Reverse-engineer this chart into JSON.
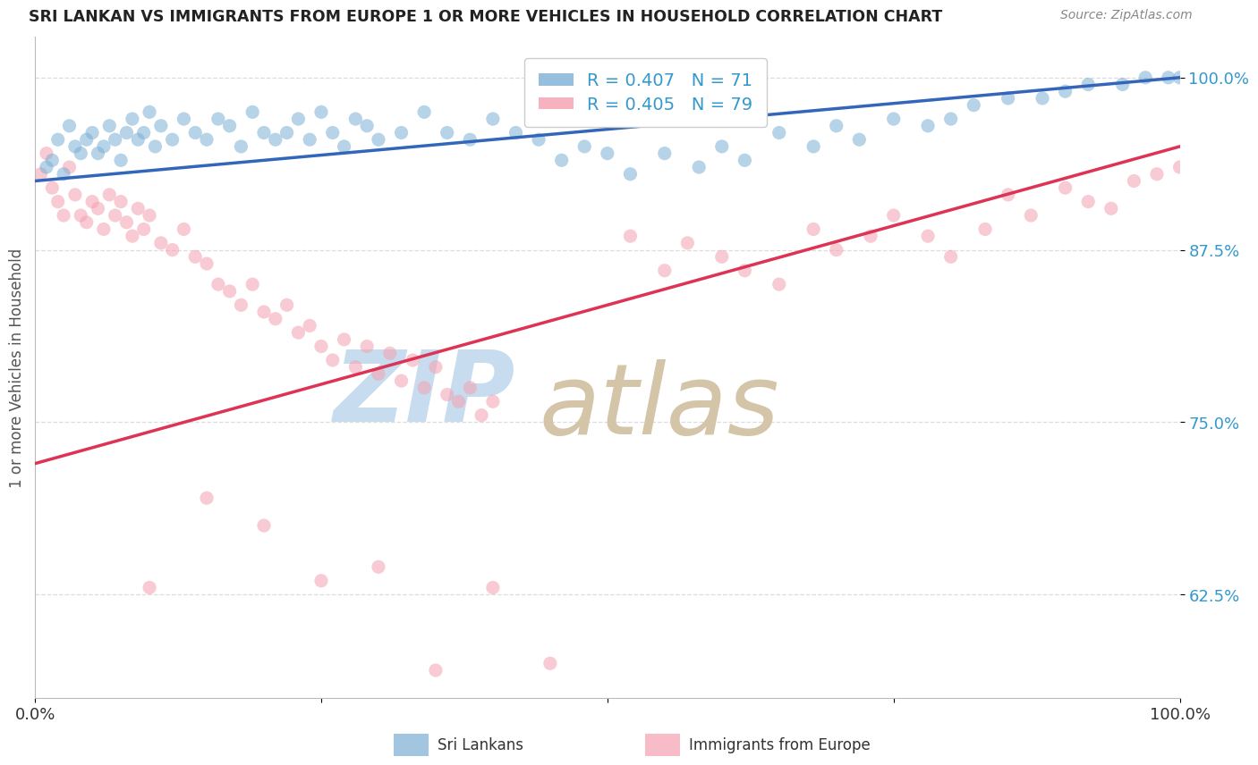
{
  "title": "SRI LANKAN VS IMMIGRANTS FROM EUROPE 1 OR MORE VEHICLES IN HOUSEHOLD CORRELATION CHART",
  "source": "Source: ZipAtlas.com",
  "ylabel": "1 or more Vehicles in Household",
  "yticks": [
    62.5,
    75.0,
    87.5,
    100.0
  ],
  "ytick_labels": [
    "62.5%",
    "75.0%",
    "87.5%",
    "100.0%"
  ],
  "xlim": [
    0,
    100
  ],
  "ylim": [
    55,
    103
  ],
  "blue_R": 0.407,
  "blue_N": 71,
  "pink_R": 0.405,
  "pink_N": 79,
  "blue_color": "#7BAFD4",
  "pink_color": "#F4A0B0",
  "blue_line_color": "#3366BB",
  "pink_line_color": "#DD3355",
  "watermark_zip": "ZIP",
  "watermark_atlas": "atlas",
  "watermark_color": "#C8DCF0",
  "watermark_atlas_color": "#D4C4A8",
  "legend_label_blue": "Sri Lankans",
  "legend_label_pink": "Immigrants from Europe",
  "blue_scatter": [
    [
      1.0,
      93.5
    ],
    [
      1.5,
      94.0
    ],
    [
      2.0,
      95.5
    ],
    [
      2.5,
      93.0
    ],
    [
      3.0,
      96.5
    ],
    [
      3.5,
      95.0
    ],
    [
      4.0,
      94.5
    ],
    [
      4.5,
      95.5
    ],
    [
      5.0,
      96.0
    ],
    [
      5.5,
      94.5
    ],
    [
      6.0,
      95.0
    ],
    [
      6.5,
      96.5
    ],
    [
      7.0,
      95.5
    ],
    [
      7.5,
      94.0
    ],
    [
      8.0,
      96.0
    ],
    [
      8.5,
      97.0
    ],
    [
      9.0,
      95.5
    ],
    [
      9.5,
      96.0
    ],
    [
      10.0,
      97.5
    ],
    [
      10.5,
      95.0
    ],
    [
      11.0,
      96.5
    ],
    [
      12.0,
      95.5
    ],
    [
      13.0,
      97.0
    ],
    [
      14.0,
      96.0
    ],
    [
      15.0,
      95.5
    ],
    [
      16.0,
      97.0
    ],
    [
      17.0,
      96.5
    ],
    [
      18.0,
      95.0
    ],
    [
      19.0,
      97.5
    ],
    [
      20.0,
      96.0
    ],
    [
      21.0,
      95.5
    ],
    [
      22.0,
      96.0
    ],
    [
      23.0,
      97.0
    ],
    [
      24.0,
      95.5
    ],
    [
      25.0,
      97.5
    ],
    [
      26.0,
      96.0
    ],
    [
      27.0,
      95.0
    ],
    [
      28.0,
      97.0
    ],
    [
      29.0,
      96.5
    ],
    [
      30.0,
      95.5
    ],
    [
      32.0,
      96.0
    ],
    [
      34.0,
      97.5
    ],
    [
      36.0,
      96.0
    ],
    [
      38.0,
      95.5
    ],
    [
      40.0,
      97.0
    ],
    [
      42.0,
      96.0
    ],
    [
      44.0,
      95.5
    ],
    [
      46.0,
      94.0
    ],
    [
      48.0,
      95.0
    ],
    [
      50.0,
      94.5
    ],
    [
      52.0,
      93.0
    ],
    [
      55.0,
      94.5
    ],
    [
      58.0,
      93.5
    ],
    [
      60.0,
      95.0
    ],
    [
      62.0,
      94.0
    ],
    [
      65.0,
      96.0
    ],
    [
      68.0,
      95.0
    ],
    [
      70.0,
      96.5
    ],
    [
      72.0,
      95.5
    ],
    [
      75.0,
      97.0
    ],
    [
      78.0,
      96.5
    ],
    [
      80.0,
      97.0
    ],
    [
      82.0,
      98.0
    ],
    [
      85.0,
      98.5
    ],
    [
      88.0,
      98.5
    ],
    [
      90.0,
      99.0
    ],
    [
      92.0,
      99.5
    ],
    [
      95.0,
      99.5
    ],
    [
      97.0,
      100.0
    ],
    [
      99.0,
      100.0
    ],
    [
      100.0,
      100.0
    ]
  ],
  "pink_scatter": [
    [
      0.5,
      93.0
    ],
    [
      1.0,
      94.5
    ],
    [
      1.5,
      92.0
    ],
    [
      2.0,
      91.0
    ],
    [
      2.5,
      90.0
    ],
    [
      3.0,
      93.5
    ],
    [
      3.5,
      91.5
    ],
    [
      4.0,
      90.0
    ],
    [
      4.5,
      89.5
    ],
    [
      5.0,
      91.0
    ],
    [
      5.5,
      90.5
    ],
    [
      6.0,
      89.0
    ],
    [
      6.5,
      91.5
    ],
    [
      7.0,
      90.0
    ],
    [
      7.5,
      91.0
    ],
    [
      8.0,
      89.5
    ],
    [
      8.5,
      88.5
    ],
    [
      9.0,
      90.5
    ],
    [
      9.5,
      89.0
    ],
    [
      10.0,
      90.0
    ],
    [
      11.0,
      88.0
    ],
    [
      12.0,
      87.5
    ],
    [
      13.0,
      89.0
    ],
    [
      14.0,
      87.0
    ],
    [
      15.0,
      86.5
    ],
    [
      16.0,
      85.0
    ],
    [
      17.0,
      84.5
    ],
    [
      18.0,
      83.5
    ],
    [
      19.0,
      85.0
    ],
    [
      20.0,
      83.0
    ],
    [
      21.0,
      82.5
    ],
    [
      22.0,
      83.5
    ],
    [
      23.0,
      81.5
    ],
    [
      24.0,
      82.0
    ],
    [
      25.0,
      80.5
    ],
    [
      26.0,
      79.5
    ],
    [
      27.0,
      81.0
    ],
    [
      28.0,
      79.0
    ],
    [
      29.0,
      80.5
    ],
    [
      30.0,
      78.5
    ],
    [
      31.0,
      80.0
    ],
    [
      32.0,
      78.0
    ],
    [
      33.0,
      79.5
    ],
    [
      34.0,
      77.5
    ],
    [
      35.0,
      79.0
    ],
    [
      36.0,
      77.0
    ],
    [
      37.0,
      76.5
    ],
    [
      38.0,
      77.5
    ],
    [
      39.0,
      75.5
    ],
    [
      40.0,
      76.5
    ],
    [
      15.0,
      69.5
    ],
    [
      20.0,
      67.5
    ],
    [
      30.0,
      64.5
    ],
    [
      40.0,
      63.0
    ],
    [
      45.0,
      57.5
    ],
    [
      52.0,
      88.5
    ],
    [
      55.0,
      86.0
    ],
    [
      57.0,
      88.0
    ],
    [
      60.0,
      87.0
    ],
    [
      62.0,
      86.0
    ],
    [
      65.0,
      85.0
    ],
    [
      68.0,
      89.0
    ],
    [
      70.0,
      87.5
    ],
    [
      73.0,
      88.5
    ],
    [
      75.0,
      90.0
    ],
    [
      78.0,
      88.5
    ],
    [
      80.0,
      87.0
    ],
    [
      83.0,
      89.0
    ],
    [
      85.0,
      91.5
    ],
    [
      87.0,
      90.0
    ],
    [
      90.0,
      92.0
    ],
    [
      92.0,
      91.0
    ],
    [
      94.0,
      90.5
    ],
    [
      96.0,
      92.5
    ],
    [
      98.0,
      93.0
    ],
    [
      100.0,
      93.5
    ],
    [
      10.0,
      63.0
    ],
    [
      25.0,
      63.5
    ],
    [
      35.0,
      57.0
    ]
  ],
  "blue_line_x": [
    0,
    100
  ],
  "blue_line_y": [
    92.5,
    100.0
  ],
  "pink_line_x": [
    0,
    100
  ],
  "pink_line_y": [
    72.0,
    95.0
  ]
}
